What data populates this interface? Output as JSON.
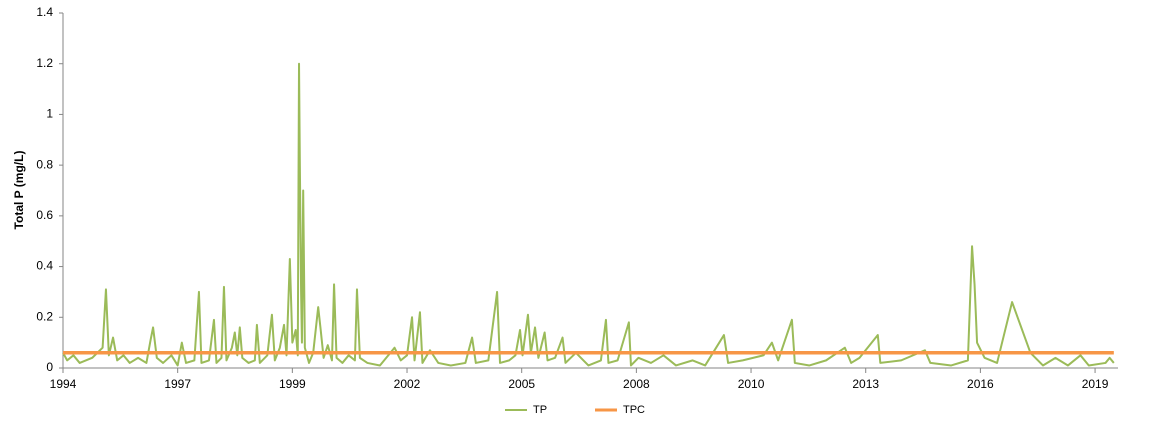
{
  "chart_data": {
    "type": "line",
    "y_label": "Total P (mg/L)",
    "xlim": [
      1994.3,
      2019.6
    ],
    "xticks": [
      {
        "value": 1994.3,
        "label": "1994"
      },
      {
        "value": 1997.05,
        "label": "1997"
      },
      {
        "value": 1999.8,
        "label": "1999"
      },
      {
        "value": 2002.55,
        "label": "2002"
      },
      {
        "value": 2005.3,
        "label": "2005"
      },
      {
        "value": 2008.05,
        "label": "2008"
      },
      {
        "value": 2010.8,
        "label": "2010"
      },
      {
        "value": 2013.55,
        "label": "2013"
      },
      {
        "value": 2016.3,
        "label": "2016"
      },
      {
        "value": 2019.05,
        "label": "2019"
      }
    ],
    "ylim": [
      0,
      1.4
    ],
    "yticks": [
      0,
      0.2,
      0.4,
      0.6,
      0.8,
      1,
      1.2,
      1.4
    ],
    "grid": false,
    "legend": "bottom",
    "series": [
      {
        "name": "TP",
        "color": "#9bbb59",
        "x": [
          1994.3,
          1994.4,
          1994.55,
          1994.7,
          1995.0,
          1995.25,
          1995.33,
          1995.4,
          1995.5,
          1995.6,
          1995.75,
          1995.9,
          1996.1,
          1996.3,
          1996.4,
          1996.46,
          1996.55,
          1996.7,
          1996.9,
          1997.05,
          1997.15,
          1997.25,
          1997.45,
          1997.56,
          1997.62,
          1997.8,
          1997.92,
          1997.98,
          1998.1,
          1998.16,
          1998.22,
          1998.35,
          1998.42,
          1998.48,
          1998.54,
          1998.6,
          1998.75,
          1998.9,
          1998.95,
          1999.02,
          1999.2,
          1999.31,
          1999.38,
          1999.5,
          1999.6,
          1999.66,
          1999.74,
          1999.8,
          1999.88,
          1999.93,
          1999.96,
          1999.98,
          2000.01,
          2000.03,
          2000.06,
          2000.1,
          2000.2,
          2000.3,
          2000.42,
          2000.48,
          2000.55,
          2000.65,
          2000.75,
          2000.8,
          2000.86,
          2001.0,
          2001.15,
          2001.3,
          2001.35,
          2001.42,
          2001.6,
          2001.9,
          2002.25,
          2002.4,
          2002.55,
          2002.67,
          2002.73,
          2002.86,
          2002.92,
          2003.1,
          2003.3,
          2003.6,
          2003.95,
          2004.11,
          2004.2,
          2004.5,
          2004.71,
          2004.78,
          2005.0,
          2005.15,
          2005.26,
          2005.32,
          2005.45,
          2005.52,
          2005.62,
          2005.7,
          2005.85,
          2005.92,
          2006.1,
          2006.28,
          2006.35,
          2006.6,
          2006.9,
          2007.2,
          2007.32,
          2007.38,
          2007.6,
          2007.87,
          2007.92,
          2008.1,
          2008.4,
          2008.7,
          2009.0,
          2009.4,
          2009.7,
          2010.15,
          2010.25,
          2010.6,
          2011.1,
          2011.3,
          2011.45,
          2011.78,
          2011.85,
          2012.2,
          2012.6,
          2013.05,
          2013.2,
          2013.4,
          2013.84,
          2013.9,
          2014.4,
          2014.97,
          2015.1,
          2015.6,
          2016.0,
          2016.06,
          2016.1,
          2016.16,
          2016.22,
          2016.4,
          2016.7,
          2017.06,
          2017.5,
          2017.8,
          2018.1,
          2018.4,
          2018.7,
          2018.9,
          2019.3,
          2019.4,
          2019.5
        ],
        "values": [
          0.06,
          0.03,
          0.05,
          0.02,
          0.04,
          0.08,
          0.31,
          0.05,
          0.12,
          0.03,
          0.05,
          0.02,
          0.04,
          0.02,
          0.11,
          0.16,
          0.04,
          0.02,
          0.05,
          0.01,
          0.1,
          0.02,
          0.03,
          0.3,
          0.02,
          0.03,
          0.19,
          0.02,
          0.04,
          0.32,
          0.03,
          0.08,
          0.14,
          0.05,
          0.16,
          0.04,
          0.02,
          0.03,
          0.17,
          0.02,
          0.05,
          0.21,
          0.03,
          0.08,
          0.17,
          0.05,
          0.43,
          0.1,
          0.15,
          0.05,
          1.2,
          0.8,
          0.3,
          0.1,
          0.7,
          0.08,
          0.02,
          0.06,
          0.24,
          0.15,
          0.04,
          0.09,
          0.03,
          0.33,
          0.04,
          0.02,
          0.05,
          0.03,
          0.31,
          0.04,
          0.02,
          0.01,
          0.08,
          0.03,
          0.05,
          0.2,
          0.03,
          0.22,
          0.02,
          0.07,
          0.02,
          0.01,
          0.02,
          0.12,
          0.02,
          0.03,
          0.3,
          0.02,
          0.03,
          0.05,
          0.15,
          0.05,
          0.21,
          0.06,
          0.16,
          0.04,
          0.14,
          0.03,
          0.04,
          0.12,
          0.02,
          0.06,
          0.01,
          0.03,
          0.19,
          0.02,
          0.03,
          0.18,
          0.01,
          0.04,
          0.02,
          0.05,
          0.01,
          0.03,
          0.01,
          0.13,
          0.02,
          0.03,
          0.05,
          0.1,
          0.03,
          0.19,
          0.02,
          0.01,
          0.03,
          0.08,
          0.02,
          0.04,
          0.13,
          0.02,
          0.03,
          0.07,
          0.02,
          0.01,
          0.03,
          0.3,
          0.48,
          0.33,
          0.1,
          0.04,
          0.02,
          0.26,
          0.06,
          0.01,
          0.04,
          0.01,
          0.05,
          0.01,
          0.02,
          0.04,
          0.02
        ]
      },
      {
        "name": "TPC",
        "color": "#f79646",
        "x": [
          1994.3,
          2019.5
        ],
        "values": [
          0.06,
          0.06
        ]
      }
    ]
  }
}
